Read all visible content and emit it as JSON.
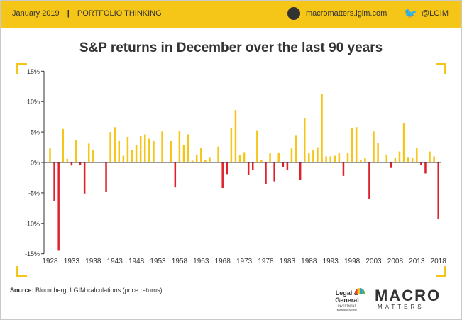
{
  "header": {
    "date": "January 2019",
    "section": "PORTFOLIO THINKING",
    "website": "macromatters.lgim.com",
    "twitter": "@LGIM",
    "twitter_icon": "twitter-bird-icon",
    "badge_icon": "macro-badge-icon",
    "colors": {
      "bar_background": "#f5c518"
    }
  },
  "footer": {
    "source_label": "Source:",
    "source_text": "Bloomberg, LGIM calculations (price returns)",
    "lg_logo_line1": "Legal &",
    "lg_logo_line2": "General",
    "lg_logo_line3": "INVESTMENT MANAGEMENT",
    "brand_big": "MACRO",
    "brand_small": "MATTERS"
  },
  "chart_data": {
    "type": "bar",
    "title": "S&P returns in December over the last 90 years",
    "xlabel": "",
    "ylabel": "",
    "x_start": 1928,
    "x_end": 2018,
    "x_ticks": [
      "1928",
      "1933",
      "1938",
      "1943",
      "1948",
      "1953",
      "1958",
      "1963",
      "1968",
      "1973",
      "1978",
      "1983",
      "1988",
      "1993",
      "1998",
      "2003",
      "2008",
      "2013",
      "2018"
    ],
    "y_ticks": [
      "15%",
      "10%",
      "5%",
      "0%",
      "-5%",
      "-10%",
      "-15%"
    ],
    "ylim": [
      -15,
      15
    ],
    "y_unit": "%",
    "colors": {
      "positive": "#f5c518",
      "negative": "#e0202a",
      "axis": "#333333"
    },
    "years": [
      1928,
      1929,
      1930,
      1931,
      1932,
      1933,
      1934,
      1935,
      1936,
      1937,
      1938,
      1939,
      1940,
      1941,
      1942,
      1943,
      1944,
      1945,
      1946,
      1947,
      1948,
      1949,
      1950,
      1951,
      1952,
      1953,
      1954,
      1955,
      1956,
      1957,
      1958,
      1959,
      1960,
      1961,
      1962,
      1963,
      1964,
      1965,
      1966,
      1967,
      1968,
      1969,
      1970,
      1971,
      1972,
      1973,
      1974,
      1975,
      1976,
      1977,
      1978,
      1979,
      1980,
      1981,
      1982,
      1983,
      1984,
      1985,
      1986,
      1987,
      1988,
      1989,
      1990,
      1991,
      1992,
      1993,
      1994,
      1995,
      1996,
      1997,
      1998,
      1999,
      2000,
      2001,
      2002,
      2003,
      2004,
      2005,
      2006,
      2007,
      2008,
      2009,
      2010,
      2011,
      2012,
      2013,
      2014,
      2015,
      2016,
      2017,
      2018
    ],
    "values": [
      2.3,
      -6.3,
      -14.5,
      5.5,
      0.6,
      -0.5,
      3.7,
      -0.4,
      -5.1,
      3.1,
      2.0,
      0.0,
      0.0,
      -4.8,
      5.0,
      5.8,
      3.5,
      1.1,
      4.2,
      2.1,
      2.9,
      4.4,
      4.6,
      3.9,
      3.5,
      0.1,
      5.1,
      0.0,
      3.5,
      -4.1,
      5.2,
      2.8,
      4.6,
      0.3,
      1.3,
      2.4,
      0.4,
      0.9,
      0.0,
      2.6,
      -4.2,
      -1.9,
      5.6,
      8.6,
      1.2,
      1.7,
      -2.1,
      -1.2,
      5.3,
      0.4,
      -3.5,
      1.5,
      -3.1,
      1.6,
      -0.7,
      -1.2,
      2.3,
      4.5,
      -2.8,
      7.3,
      1.5,
      2.1,
      2.5,
      11.2,
      1.0,
      1.0,
      1.1,
      1.5,
      -2.2,
      1.6,
      5.6,
      5.8,
      0.4,
      0.8,
      -6.0,
      5.1,
      3.2,
      0.0,
      1.3,
      -0.9,
      0.8,
      1.8,
      6.5,
      0.9,
      0.7,
      2.4,
      -0.4,
      -1.8,
      1.8,
      1.0,
      -9.2
    ]
  }
}
